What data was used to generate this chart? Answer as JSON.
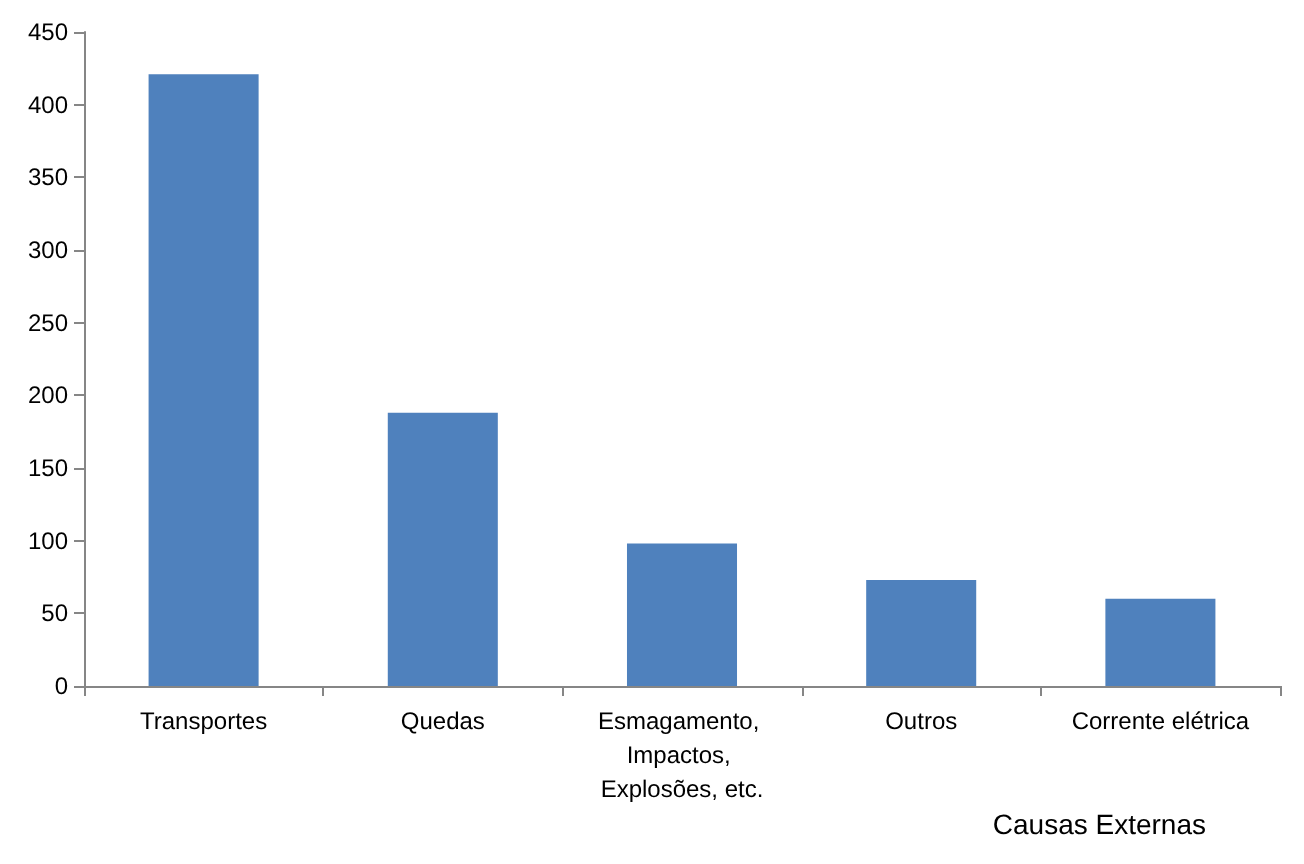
{
  "chart_data": {
    "type": "bar",
    "xlabel": "Causas Externas",
    "categories": [
      "Transportes",
      "Quedas",
      "Esmagamento, Impactos, Explosões, etc.",
      "Outros",
      "Corrente elétrica"
    ],
    "values": [
      421,
      188,
      98,
      73,
      60
    ],
    "color": "#4f81bd",
    "ylim": [
      0,
      450
    ],
    "yticks": [
      0,
      50,
      100,
      150,
      200,
      250,
      300,
      350,
      400,
      450
    ]
  }
}
